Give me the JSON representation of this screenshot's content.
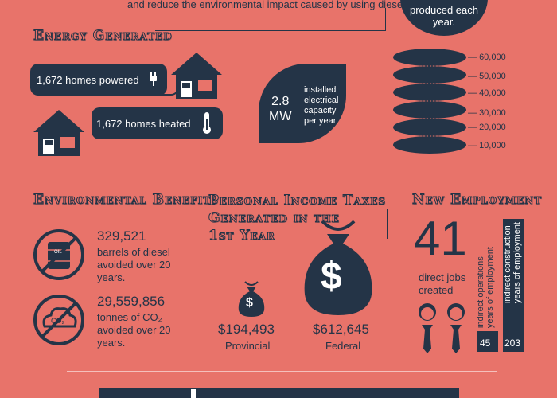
{
  "intro": {
    "text_tail": "and reduce the environmental impact caused by using diesel."
  },
  "top_badge": {
    "line1": "produced each",
    "line2": "year."
  },
  "energy": {
    "title": "Energy Generated",
    "homes_powered": "1,672 homes powered",
    "homes_heated": "1,672 homes heated",
    "capacity_value_1": "2.8",
    "capacity_value_2": "MW",
    "capacity_label": [
      "installed",
      "electrical",
      "capacity",
      "per year"
    ],
    "stack_labels": [
      "60,000",
      "50,000",
      "40,000",
      "30,000",
      "20,000",
      "10,000"
    ]
  },
  "environment": {
    "title": "Environmental Benefits",
    "diesel_value": "329,521",
    "diesel_caption": [
      "barrels of diesel",
      "avoided over 20",
      "years."
    ],
    "co2_value": "29,559,856",
    "co2_caption": [
      "tonnes of CO₂",
      "avoided over 20",
      "years."
    ],
    "icon_co2_label": "CO₂",
    "icon_barrel_label": "OIL"
  },
  "taxes": {
    "title_line1": "Personal Income Taxes",
    "title_line2": "Generated in the",
    "title_line3": "1st Year",
    "provincial_value": "$194,493",
    "provincial_label": "Provincial",
    "federal_value": "$612,645",
    "federal_label": "Federal",
    "bag_symbol": "$"
  },
  "employment": {
    "title": "New Employment",
    "direct_value": "41",
    "direct_caption": [
      "direct jobs",
      "created"
    ],
    "bar1_label": [
      "indirect operations",
      "years of employment"
    ],
    "bar1_value": "45",
    "bar2_label": [
      "indirect construction",
      "years of employment"
    ],
    "bar2_value": "203"
  },
  "colors": {
    "background": "#E8736A",
    "dark": "#243447",
    "light": "#FFFFFF"
  }
}
